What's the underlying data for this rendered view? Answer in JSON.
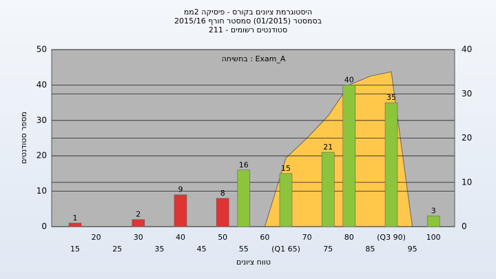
{
  "chart_data": {
    "type": "bar",
    "title": "היסטוגרמת ציונים בקורס - פיסיקה 2ממ",
    "subtitle": "בסמסטר  (01/2015)  סמסטר חורף 2015/16",
    "subtitle2": "סטודנטים רשומים - 211",
    "annotation": "בחשיחה : Exam_A",
    "y_label": "מספר סטודנטים",
    "x_label": "טווח ציונים",
    "categories": [
      "15",
      "20",
      "25",
      "30",
      "35",
      "40",
      "45",
      "50",
      "55",
      "60",
      "(Q1 65)",
      "70",
      "75",
      "80",
      "85",
      "(Q3 90)",
      "95",
      "100"
    ],
    "series": [
      {
        "values": [
          1,
          null,
          null,
          2,
          null,
          9,
          null,
          8,
          16,
          null,
          15,
          null,
          21,
          40,
          null,
          35,
          null,
          3
        ],
        "colors": [
          "#e03434",
          null,
          null,
          "#e03434",
          null,
          "#e03434",
          null,
          "#e03434",
          "#8cc43c",
          null,
          "#8cc43c",
          null,
          "#8cc43c",
          "#8cc43c",
          null,
          "#8cc43c",
          null,
          "#8cc43c"
        ]
      },
      {
        "type": "area",
        "axis": "y2",
        "color": "#ffc84a",
        "values": [
          null,
          null,
          null,
          null,
          null,
          null,
          null,
          null,
          null,
          0,
          15.5,
          20,
          25,
          32,
          34,
          35,
          0,
          null
        ]
      }
    ],
    "ylim": [
      0,
      50
    ],
    "yticks": [
      0,
      10,
      20,
      30,
      40,
      50
    ],
    "y2lim": [
      0,
      40
    ],
    "y2ticks": [
      0,
      10,
      20,
      30,
      40
    ],
    "grid": true
  }
}
